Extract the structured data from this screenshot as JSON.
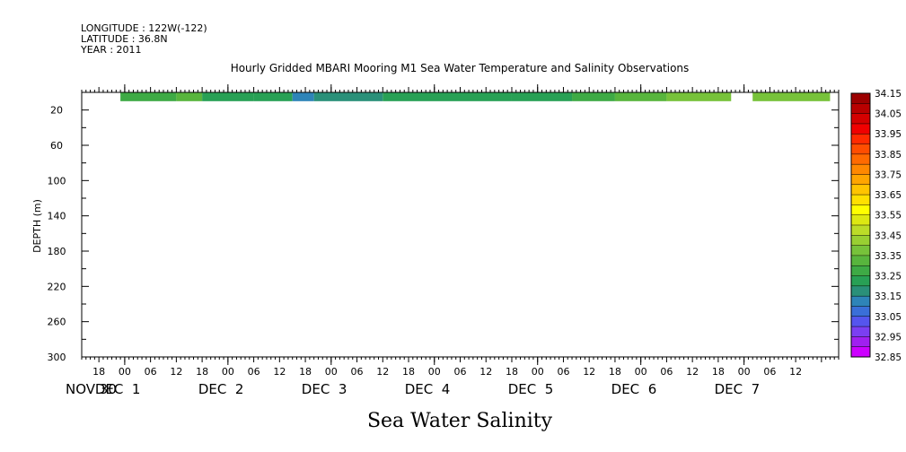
{
  "header": {
    "longitude": "LONGITUDE : 122W(-122)",
    "latitude": "LATITUDE : 36.8N",
    "year": "YEAR : 2011"
  },
  "chart_data": {
    "type": "heatmap",
    "title": "Hourly Gridded MBARI Mooring M1 Sea Water Temperature and Salinity Observations",
    "xlabel": "Sea Water Salinity",
    "ylabel": "DEPTH (m)",
    "ylim": [
      300,
      0
    ],
    "yticks": [
      20,
      60,
      100,
      140,
      180,
      220,
      260,
      300
    ],
    "xlim": [
      "2011-11-30T14:00",
      "2011-12-07T22:00"
    ],
    "hour_ticks": [
      {
        "time": "2011-11-30T18:00",
        "label": "18"
      },
      {
        "time": "2011-12-01T00:00",
        "label": "00"
      },
      {
        "time": "2011-12-01T06:00",
        "label": "06"
      },
      {
        "time": "2011-12-01T12:00",
        "label": "12"
      },
      {
        "time": "2011-12-01T18:00",
        "label": "18"
      },
      {
        "time": "2011-12-02T00:00",
        "label": "00"
      },
      {
        "time": "2011-12-02T06:00",
        "label": "06"
      },
      {
        "time": "2011-12-02T12:00",
        "label": "12"
      },
      {
        "time": "2011-12-02T18:00",
        "label": "18"
      },
      {
        "time": "2011-12-03T00:00",
        "label": "00"
      },
      {
        "time": "2011-12-03T06:00",
        "label": "06"
      },
      {
        "time": "2011-12-03T12:00",
        "label": "12"
      },
      {
        "time": "2011-12-03T18:00",
        "label": "18"
      },
      {
        "time": "2011-12-04T00:00",
        "label": "00"
      },
      {
        "time": "2011-12-04T06:00",
        "label": "06"
      },
      {
        "time": "2011-12-04T12:00",
        "label": "12"
      },
      {
        "time": "2011-12-04T18:00",
        "label": "18"
      },
      {
        "time": "2011-12-05T00:00",
        "label": "00"
      },
      {
        "time": "2011-12-05T06:00",
        "label": "06"
      },
      {
        "time": "2011-12-05T12:00",
        "label": "12"
      },
      {
        "time": "2011-12-05T18:00",
        "label": "18"
      },
      {
        "time": "2011-12-06T00:00",
        "label": "00"
      },
      {
        "time": "2011-12-06T06:00",
        "label": "06"
      },
      {
        "time": "2011-12-06T12:00",
        "label": "12"
      },
      {
        "time": "2011-12-06T18:00",
        "label": "18"
      },
      {
        "time": "2011-12-07T00:00",
        "label": "00"
      },
      {
        "time": "2011-12-07T06:00",
        "label": "06"
      },
      {
        "time": "2011-12-07T12:00",
        "label": "12"
      }
    ],
    "date_labels": [
      {
        "time": "2011-11-30T00:00",
        "label": "NOV 30"
      },
      {
        "time": "2011-12-01T00:00",
        "label": "DEC  1"
      },
      {
        "time": "2011-12-02T00:00",
        "label": "DEC  2"
      },
      {
        "time": "2011-12-03T00:00",
        "label": "DEC  3"
      },
      {
        "time": "2011-12-04T00:00",
        "label": "DEC  4"
      },
      {
        "time": "2011-12-05T00:00",
        "label": "DEC  5"
      },
      {
        "time": "2011-12-06T00:00",
        "label": "DEC  6"
      },
      {
        "time": "2011-12-07T00:00",
        "label": "DEC  7"
      }
    ],
    "depth_band": [
      0,
      10
    ],
    "segments": [
      {
        "start": "2011-11-30T23:00",
        "end": "2011-12-01T12:00",
        "value": 33.27
      },
      {
        "start": "2011-12-01T12:00",
        "end": "2011-12-01T18:00",
        "value": 33.31
      },
      {
        "start": "2011-12-01T18:00",
        "end": "2011-12-02T06:00",
        "value": 33.24
      },
      {
        "start": "2011-12-02T06:00",
        "end": "2011-12-02T15:00",
        "value": 33.23
      },
      {
        "start": "2011-12-02T15:00",
        "end": "2011-12-02T20:00",
        "value": 33.1
      },
      {
        "start": "2011-12-02T20:00",
        "end": "2011-12-03T12:00",
        "value": 33.19
      },
      {
        "start": "2011-12-03T12:00",
        "end": "2011-12-04T06:00",
        "value": 33.2
      },
      {
        "start": "2011-12-04T06:00",
        "end": "2011-12-04T18:00",
        "value": 33.22
      },
      {
        "start": "2011-12-04T18:00",
        "end": "2011-12-05T08:00",
        "value": 33.25
      },
      {
        "start": "2011-12-05T08:00",
        "end": "2011-12-05T18:00",
        "value": 33.3
      },
      {
        "start": "2011-12-05T18:00",
        "end": "2011-12-06T06:00",
        "value": 33.34
      },
      {
        "start": "2011-12-06T06:00",
        "end": "2011-12-06T21:00",
        "value": 33.37
      },
      {
        "start": "2011-12-07T02:00",
        "end": "2011-12-07T20:00",
        "value": 33.38
      }
    ],
    "colorbar": {
      "levels": [
        "34.15",
        "34.05",
        "33.95",
        "33.85",
        "33.75",
        "33.65",
        "33.55",
        "33.45",
        "33.35",
        "33.25",
        "33.15",
        "33.05",
        "32.95",
        "32.85"
      ],
      "min": 32.85,
      "max": 34.15,
      "step": 0.05,
      "colors": [
        "#cc00ff",
        "#a020f0",
        "#7b3ff2",
        "#5555ee",
        "#3a6fd8",
        "#2e84b8",
        "#2a9079",
        "#28a055",
        "#3eaa45",
        "#58b53d",
        "#77c23a",
        "#99cf32",
        "#bcdc28",
        "#dde812",
        "#ffff00",
        "#ffe000",
        "#ffc400",
        "#ffa500",
        "#ff8800",
        "#ff6a00",
        "#ff4d00",
        "#ff2a00",
        "#f00000",
        "#d40000",
        "#b80000",
        "#9c0000"
      ]
    }
  }
}
